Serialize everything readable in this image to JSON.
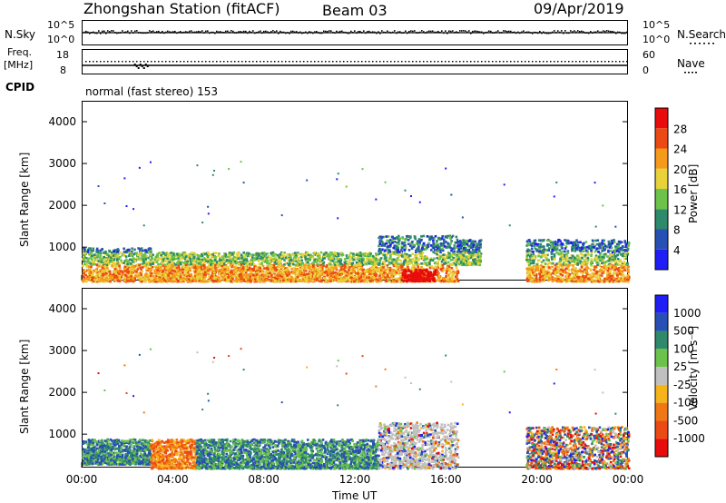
{
  "header": {
    "station": "Zhongshan Station (fitACF)",
    "beam": "Beam 03",
    "date": "09/Apr/2019"
  },
  "noise_panel": {
    "left_label": "N.Sky",
    "right_label": "N.Search",
    "left_ticks": [
      "10^5",
      "10^0"
    ],
    "right_ticks": [
      "10^5",
      "10^0"
    ]
  },
  "freq_panel": {
    "left_label_top": "Freq.",
    "left_label_unit": "[MHz]",
    "right_label": "Nave",
    "left_ticks": [
      "18",
      "8"
    ],
    "right_ticks": [
      "60",
      "0"
    ]
  },
  "cpid": {
    "label": "CPID",
    "mode": "normal (fast stereo) 153"
  },
  "chart_data": [
    {
      "type": "heatmap",
      "title": "",
      "xlabel": "",
      "ylabel": "Slant Range [km]",
      "y_ticks": [
        "1000",
        "2000",
        "3000",
        "4000"
      ],
      "ylim": [
        200,
        4500
      ],
      "colorbar_label": "Power [dB]",
      "colorbar_ticks": [
        "4",
        "8",
        "12",
        "16",
        "20",
        "24",
        "28"
      ],
      "colorbar_colors": [
        "#1e1ef5",
        "#2850b4",
        "#2e8a6a",
        "#6cc24a",
        "#e8d23a",
        "#f59a1a",
        "#ec4a14",
        "#e80c0c"
      ],
      "scatter_regions": [
        {
          "t_start": 0.0,
          "t_end": 3.0,
          "range_km": [
            200,
            1000
          ]
        },
        {
          "t_start": 3.0,
          "t_end": 13.0,
          "range_km": [
            200,
            900
          ]
        },
        {
          "t_start": 13.0,
          "t_end": 16.5,
          "range_km": [
            200,
            1300
          ]
        },
        {
          "t_start": 16.5,
          "t_end": 17.5,
          "range_km": [
            600,
            1200
          ]
        },
        {
          "t_start": 19.5,
          "t_end": 24.0,
          "range_km": [
            200,
            1200
          ]
        }
      ],
      "peak_region": {
        "t_start": 14.0,
        "t_end": 15.5,
        "range_km": [
          200,
          500
        ],
        "value_db": 28
      }
    },
    {
      "type": "heatmap",
      "title": "",
      "xlabel": "Time UT",
      "ylabel": "Slant Range [km]",
      "x_ticks": [
        "00:00",
        "04:00",
        "08:00",
        "12:00",
        "16:00",
        "20:00",
        "00:00"
      ],
      "xlim_hours": [
        0,
        24
      ],
      "y_ticks": [
        "1000",
        "2000",
        "3000",
        "4000"
      ],
      "ylim": [
        200,
        4500
      ],
      "colorbar_label": "Velocity [m s⁻¹]",
      "colorbar_ticks": [
        "1000",
        "500",
        "100",
        "25",
        "-25",
        "-100",
        "-500",
        "-1000"
      ],
      "colorbar_colors": [
        "#1e1ef5",
        "#2850b4",
        "#2e8a6a",
        "#6cc24a",
        "#c0c0c0",
        "#f5b41a",
        "#f07814",
        "#ec4a14",
        "#e80c0c"
      ],
      "scatter_regions": [
        {
          "t_start": 0.0,
          "t_end": 3.0,
          "range_km": [
            300,
            900
          ],
          "sign": "positive"
        },
        {
          "t_start": 3.0,
          "t_end": 5.0,
          "range_km": [
            200,
            900
          ],
          "sign": "negative"
        },
        {
          "t_start": 5.0,
          "t_end": 13.0,
          "range_km": [
            200,
            900
          ],
          "sign": "positive"
        },
        {
          "t_start": 13.0,
          "t_end": 16.5,
          "range_km": [
            200,
            1300
          ],
          "sign": "near-zero"
        },
        {
          "t_start": 19.5,
          "t_end": 24.0,
          "range_km": [
            200,
            1200
          ],
          "sign": "mixed"
        }
      ]
    }
  ]
}
